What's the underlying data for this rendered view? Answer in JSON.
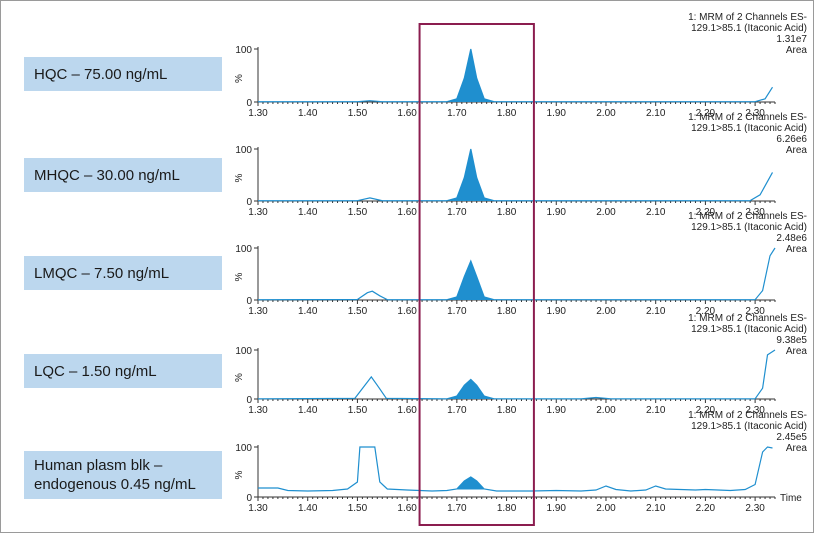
{
  "chart_data": {
    "type": "line",
    "x_axis": {
      "min": 1.3,
      "max": 2.34,
      "ticks": [
        "1.30",
        "1.40",
        "1.50",
        "1.60",
        "1.70",
        "1.80",
        "1.90",
        "2.00",
        "2.10",
        "2.20",
        "2.30"
      ],
      "label": "Time"
    },
    "y_axis": {
      "min": 0,
      "max": 100,
      "ticks": [
        "0",
        "100"
      ],
      "label": "%"
    },
    "highlight_window": {
      "x_start": 1.625,
      "x_end": 1.855,
      "color": "#8b1d4f"
    },
    "series_color": "#1f8fcf",
    "panels": [
      {
        "sample_label": "HQC – 75.00 ng/mL",
        "header": [
          "1: MRM of 2 Channels ES-",
          "129.1>85.1 (Itaconic Acid)",
          "1.31e7",
          "Area"
        ],
        "points": [
          [
            1.3,
            0.5
          ],
          [
            1.5,
            0.5
          ],
          [
            1.525,
            2.5
          ],
          [
            1.55,
            0.5
          ],
          [
            1.68,
            0.5
          ],
          [
            1.7,
            6
          ],
          [
            1.715,
            45
          ],
          [
            1.728,
            100
          ],
          [
            1.74,
            45
          ],
          [
            1.755,
            6
          ],
          [
            1.775,
            0.5
          ],
          [
            2.3,
            0.5
          ],
          [
            2.32,
            6
          ],
          [
            2.335,
            28
          ]
        ],
        "filled_peak": [
          1.685,
          1.775
        ]
      },
      {
        "sample_label": "MHQC – 30.00 ng/mL",
        "header": [
          "1: MRM of 2 Channels ES-",
          "129.1>85.1 (Itaconic Acid)",
          "6.26e6",
          "Area"
        ],
        "points": [
          [
            1.3,
            0.5
          ],
          [
            1.5,
            0.5
          ],
          [
            1.525,
            6
          ],
          [
            1.55,
            0.5
          ],
          [
            1.68,
            0.5
          ],
          [
            1.7,
            6
          ],
          [
            1.715,
            45
          ],
          [
            1.728,
            100
          ],
          [
            1.74,
            45
          ],
          [
            1.755,
            6
          ],
          [
            1.775,
            0.5
          ],
          [
            2.29,
            0.5
          ],
          [
            2.31,
            12
          ],
          [
            2.335,
            55
          ]
        ],
        "filled_peak": [
          1.685,
          1.775
        ]
      },
      {
        "sample_label": "LMQC – 7.50 ng/mL",
        "header": [
          "1: MRM of 2 Channels ES-",
          "129.1>85.1 (Itaconic Acid)",
          "2.48e6",
          "Area"
        ],
        "points": [
          [
            1.3,
            0.5
          ],
          [
            1.5,
            1
          ],
          [
            1.52,
            14
          ],
          [
            1.53,
            17
          ],
          [
            1.545,
            8
          ],
          [
            1.56,
            0.5
          ],
          [
            1.68,
            0.5
          ],
          [
            1.7,
            6
          ],
          [
            1.715,
            45
          ],
          [
            1.728,
            75
          ],
          [
            1.74,
            45
          ],
          [
            1.755,
            6
          ],
          [
            1.775,
            0.5
          ],
          [
            2.3,
            0.5
          ],
          [
            2.315,
            18
          ],
          [
            2.33,
            85
          ],
          [
            2.34,
            100
          ]
        ],
        "filled_peak": [
          1.685,
          1.775
        ]
      },
      {
        "sample_label": "LQC – 1.50 ng/mL",
        "header": [
          "1: MRM of 2 Channels ES-",
          "129.1>85.1 (Itaconic Acid)",
          "9.38e5",
          "Area"
        ],
        "points": [
          [
            1.3,
            0.5
          ],
          [
            1.495,
            1.5
          ],
          [
            1.515,
            28
          ],
          [
            1.528,
            45
          ],
          [
            1.54,
            28
          ],
          [
            1.558,
            1.5
          ],
          [
            1.68,
            0.5
          ],
          [
            1.7,
            6
          ],
          [
            1.715,
            28
          ],
          [
            1.728,
            40
          ],
          [
            1.74,
            28
          ],
          [
            1.755,
            6
          ],
          [
            1.775,
            0.5
          ],
          [
            1.95,
            0.5
          ],
          [
            1.98,
            3
          ],
          [
            2.01,
            0.5
          ],
          [
            2.3,
            0.5
          ],
          [
            2.315,
            22
          ],
          [
            2.325,
            90
          ],
          [
            2.34,
            100
          ]
        ],
        "filled_peak": [
          1.685,
          1.775
        ]
      },
      {
        "sample_label": "Human plasm blk – endogenous 0.45 ng/mL",
        "sample_label_lines": [
          "Human plasm blk –",
          "endogenous 0.45 ng/mL"
        ],
        "header": [
          "1: MRM of 2 Channels ES-",
          "129.1>85.1 (Itaconic Acid)",
          "2.45e5",
          "Area"
        ],
        "points": [
          [
            1.3,
            18
          ],
          [
            1.34,
            18
          ],
          [
            1.36,
            13
          ],
          [
            1.4,
            12
          ],
          [
            1.45,
            13
          ],
          [
            1.48,
            16
          ],
          [
            1.5,
            30
          ],
          [
            1.505,
            100
          ],
          [
            1.535,
            100
          ],
          [
            1.545,
            30
          ],
          [
            1.56,
            16
          ],
          [
            1.6,
            14
          ],
          [
            1.65,
            12
          ],
          [
            1.68,
            13
          ],
          [
            1.7,
            16
          ],
          [
            1.715,
            32
          ],
          [
            1.728,
            40
          ],
          [
            1.74,
            32
          ],
          [
            1.755,
            16
          ],
          [
            1.78,
            12
          ],
          [
            1.85,
            12
          ],
          [
            1.9,
            13
          ],
          [
            1.95,
            12
          ],
          [
            1.98,
            14
          ],
          [
            2.0,
            22
          ],
          [
            2.02,
            15
          ],
          [
            2.05,
            12
          ],
          [
            2.08,
            14
          ],
          [
            2.1,
            22
          ],
          [
            2.12,
            16
          ],
          [
            2.15,
            15
          ],
          [
            2.18,
            14
          ],
          [
            2.2,
            15
          ],
          [
            2.25,
            13
          ],
          [
            2.28,
            15
          ],
          [
            2.3,
            25
          ],
          [
            2.315,
            90
          ],
          [
            2.325,
            100
          ],
          [
            2.335,
            98
          ]
        ],
        "filled_peak": [
          1.695,
          1.765
        ],
        "baseline_y": 15
      }
    ]
  }
}
